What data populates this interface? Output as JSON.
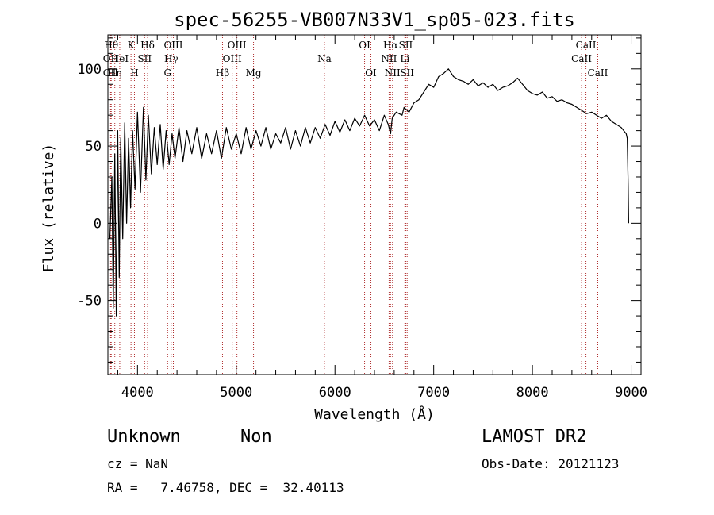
{
  "chart_data": {
    "type": "line",
    "title": "spec-56255-VB007N33V1_sp05-023.fits",
    "xlabel": "Wavelength (Å)",
    "ylabel": "Flux (relative)",
    "xlim": [
      3700,
      9100
    ],
    "ylim": [
      -98,
      122
    ],
    "x_ticks": [
      4000,
      5000,
      6000,
      7000,
      8000,
      9000
    ],
    "y_ticks": [
      -50,
      0,
      50,
      100
    ],
    "line_color": "#000000",
    "marker_color": "#b03030",
    "grid": false,
    "spectrum": [
      [
        3720,
        -10
      ],
      [
        3740,
        30
      ],
      [
        3755,
        -55
      ],
      [
        3770,
        45
      ],
      [
        3785,
        -60
      ],
      [
        3800,
        60
      ],
      [
        3815,
        -35
      ],
      [
        3830,
        55
      ],
      [
        3850,
        -10
      ],
      [
        3870,
        65
      ],
      [
        3890,
        0
      ],
      [
        3910,
        55
      ],
      [
        3930,
        10
      ],
      [
        3950,
        60
      ],
      [
        3975,
        22
      ],
      [
        4000,
        72
      ],
      [
        4030,
        20
      ],
      [
        4060,
        75
      ],
      [
        4085,
        28
      ],
      [
        4110,
        70
      ],
      [
        4140,
        32
      ],
      [
        4170,
        62
      ],
      [
        4200,
        38
      ],
      [
        4230,
        64
      ],
      [
        4260,
        35
      ],
      [
        4290,
        60
      ],
      [
        4320,
        38
      ],
      [
        4350,
        58
      ],
      [
        4380,
        42
      ],
      [
        4420,
        62
      ],
      [
        4460,
        40
      ],
      [
        4500,
        60
      ],
      [
        4550,
        45
      ],
      [
        4600,
        62
      ],
      [
        4650,
        42
      ],
      [
        4700,
        58
      ],
      [
        4750,
        45
      ],
      [
        4800,
        60
      ],
      [
        4850,
        42
      ],
      [
        4900,
        62
      ],
      [
        4950,
        48
      ],
      [
        5000,
        58
      ],
      [
        5050,
        45
      ],
      [
        5100,
        62
      ],
      [
        5150,
        48
      ],
      [
        5200,
        60
      ],
      [
        5250,
        50
      ],
      [
        5300,
        62
      ],
      [
        5350,
        48
      ],
      [
        5400,
        58
      ],
      [
        5450,
        52
      ],
      [
        5500,
        62
      ],
      [
        5550,
        48
      ],
      [
        5600,
        60
      ],
      [
        5650,
        50
      ],
      [
        5700,
        62
      ],
      [
        5750,
        52
      ],
      [
        5800,
        62
      ],
      [
        5850,
        55
      ],
      [
        5900,
        64
      ],
      [
        5950,
        57
      ],
      [
        6000,
        66
      ],
      [
        6050,
        59
      ],
      [
        6100,
        67
      ],
      [
        6150,
        60
      ],
      [
        6200,
        68
      ],
      [
        6250,
        63
      ],
      [
        6300,
        70
      ],
      [
        6350,
        63
      ],
      [
        6400,
        67
      ],
      [
        6450,
        60
      ],
      [
        6500,
        70
      ],
      [
        6540,
        64
      ],
      [
        6563,
        58
      ],
      [
        6580,
        68
      ],
      [
        6620,
        72
      ],
      [
        6680,
        70
      ],
      [
        6700,
        75
      ],
      [
        6750,
        72
      ],
      [
        6800,
        78
      ],
      [
        6850,
        80
      ],
      [
        6900,
        85
      ],
      [
        6950,
        90
      ],
      [
        7000,
        88
      ],
      [
        7050,
        95
      ],
      [
        7100,
        97
      ],
      [
        7150,
        100
      ],
      [
        7200,
        95
      ],
      [
        7250,
        93
      ],
      [
        7300,
        92
      ],
      [
        7350,
        90
      ],
      [
        7400,
        93
      ],
      [
        7450,
        89
      ],
      [
        7500,
        91
      ],
      [
        7550,
        88
      ],
      [
        7600,
        90
      ],
      [
        7650,
        86
      ],
      [
        7700,
        88
      ],
      [
        7750,
        89
      ],
      [
        7800,
        91
      ],
      [
        7850,
        94
      ],
      [
        7900,
        90
      ],
      [
        7950,
        86
      ],
      [
        8000,
        84
      ],
      [
        8050,
        83
      ],
      [
        8100,
        85
      ],
      [
        8150,
        81
      ],
      [
        8200,
        82
      ],
      [
        8250,
        79
      ],
      [
        8300,
        80
      ],
      [
        8350,
        78
      ],
      [
        8400,
        77
      ],
      [
        8450,
        75
      ],
      [
        8500,
        73
      ],
      [
        8550,
        71
      ],
      [
        8600,
        72
      ],
      [
        8650,
        70
      ],
      [
        8700,
        68
      ],
      [
        8750,
        70
      ],
      [
        8800,
        66
      ],
      [
        8850,
        64
      ],
      [
        8900,
        62
      ],
      [
        8950,
        58
      ],
      [
        8960,
        55
      ],
      [
        8970,
        25
      ],
      [
        8975,
        0
      ]
    ],
    "lines": [
      {
        "label": "Hθ",
        "x": 3734,
        "row": 1
      },
      {
        "label": "OII",
        "x": 3727,
        "row": 2
      },
      {
        "label": "OII",
        "x": 3727,
        "row": 3
      },
      {
        "label": "Hη",
        "x": 3770,
        "row": 3
      },
      {
        "label": "HeI",
        "x": 3820,
        "row": 2
      },
      {
        "label": "K",
        "x": 3934,
        "row": 1
      },
      {
        "label": "H",
        "x": 3969,
        "row": 3
      },
      {
        "label": "SII",
        "x": 4072,
        "row": 2
      },
      {
        "label": "Hδ",
        "x": 4102,
        "row": 1
      },
      {
        "label": "OIII",
        "x": 4363,
        "row": 1
      },
      {
        "label": "Hγ",
        "x": 4341,
        "row": 2
      },
      {
        "label": "G",
        "x": 4305,
        "row": 3
      },
      {
        "label": "Hβ",
        "x": 4861,
        "row": 3
      },
      {
        "label": "OIII",
        "x": 5007,
        "row": 1
      },
      {
        "label": "OIII",
        "x": 4959,
        "row": 2
      },
      {
        "label": "Mg",
        "x": 5175,
        "row": 3
      },
      {
        "label": "Na",
        "x": 5893,
        "row": 2
      },
      {
        "label": "OI",
        "x": 6300,
        "row": 1
      },
      {
        "label": "OI",
        "x": 6364,
        "row": 3
      },
      {
        "label": "Hα",
        "x": 6563,
        "row": 1
      },
      {
        "label": "NII",
        "x": 6548,
        "row": 2
      },
      {
        "label": "NII",
        "x": 6583,
        "row": 3
      },
      {
        "label": "SII",
        "x": 6717,
        "row": 1
      },
      {
        "label": "Li",
        "x": 6708,
        "row": 2
      },
      {
        "label": "SII",
        "x": 6731,
        "row": 3
      },
      {
        "label": "CaII",
        "x": 8542,
        "row": 1
      },
      {
        "label": "CaII",
        "x": 8498,
        "row": 2
      },
      {
        "label": "CaII",
        "x": 8662,
        "row": 3
      }
    ]
  },
  "info": {
    "class_label": "Unknown",
    "subclass_label": "Non",
    "survey_label": "LAMOST DR2",
    "cz_line": "cz = NaN",
    "obs_date_line": "Obs-Date: 20121123",
    "coords_line": "RA =   7.46758, DEC =  32.40113"
  }
}
